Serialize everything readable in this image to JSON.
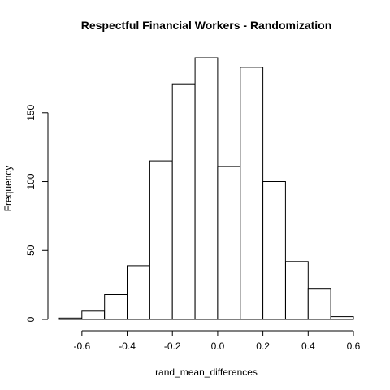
{
  "chart_data": {
    "type": "bar",
    "title": "Respectful Financial Workers - Randomization",
    "xlabel": "rand_mean_differences",
    "ylabel": "Frequency",
    "bin_edges": [
      -0.7,
      -0.6,
      -0.5,
      -0.4,
      -0.3,
      -0.2,
      -0.1,
      0.0,
      0.1,
      0.2,
      0.3,
      0.4,
      0.5,
      0.6
    ],
    "values": [
      1,
      6,
      18,
      39,
      115,
      171,
      190,
      111,
      183,
      100,
      42,
      22,
      2
    ],
    "xlim": [
      -0.7,
      0.6
    ],
    "ylim": [
      0,
      190
    ],
    "x_ticks": [
      -0.6,
      -0.4,
      -0.2,
      0.0,
      0.2,
      0.4,
      0.6
    ],
    "x_tick_labels": [
      "-0.6",
      "-0.4",
      "-0.2",
      "0.0",
      "0.2",
      "0.4",
      "0.6"
    ],
    "y_ticks": [
      0,
      50,
      100,
      150
    ],
    "y_tick_labels": [
      "0",
      "50",
      "100",
      "150"
    ],
    "grid": false
  }
}
